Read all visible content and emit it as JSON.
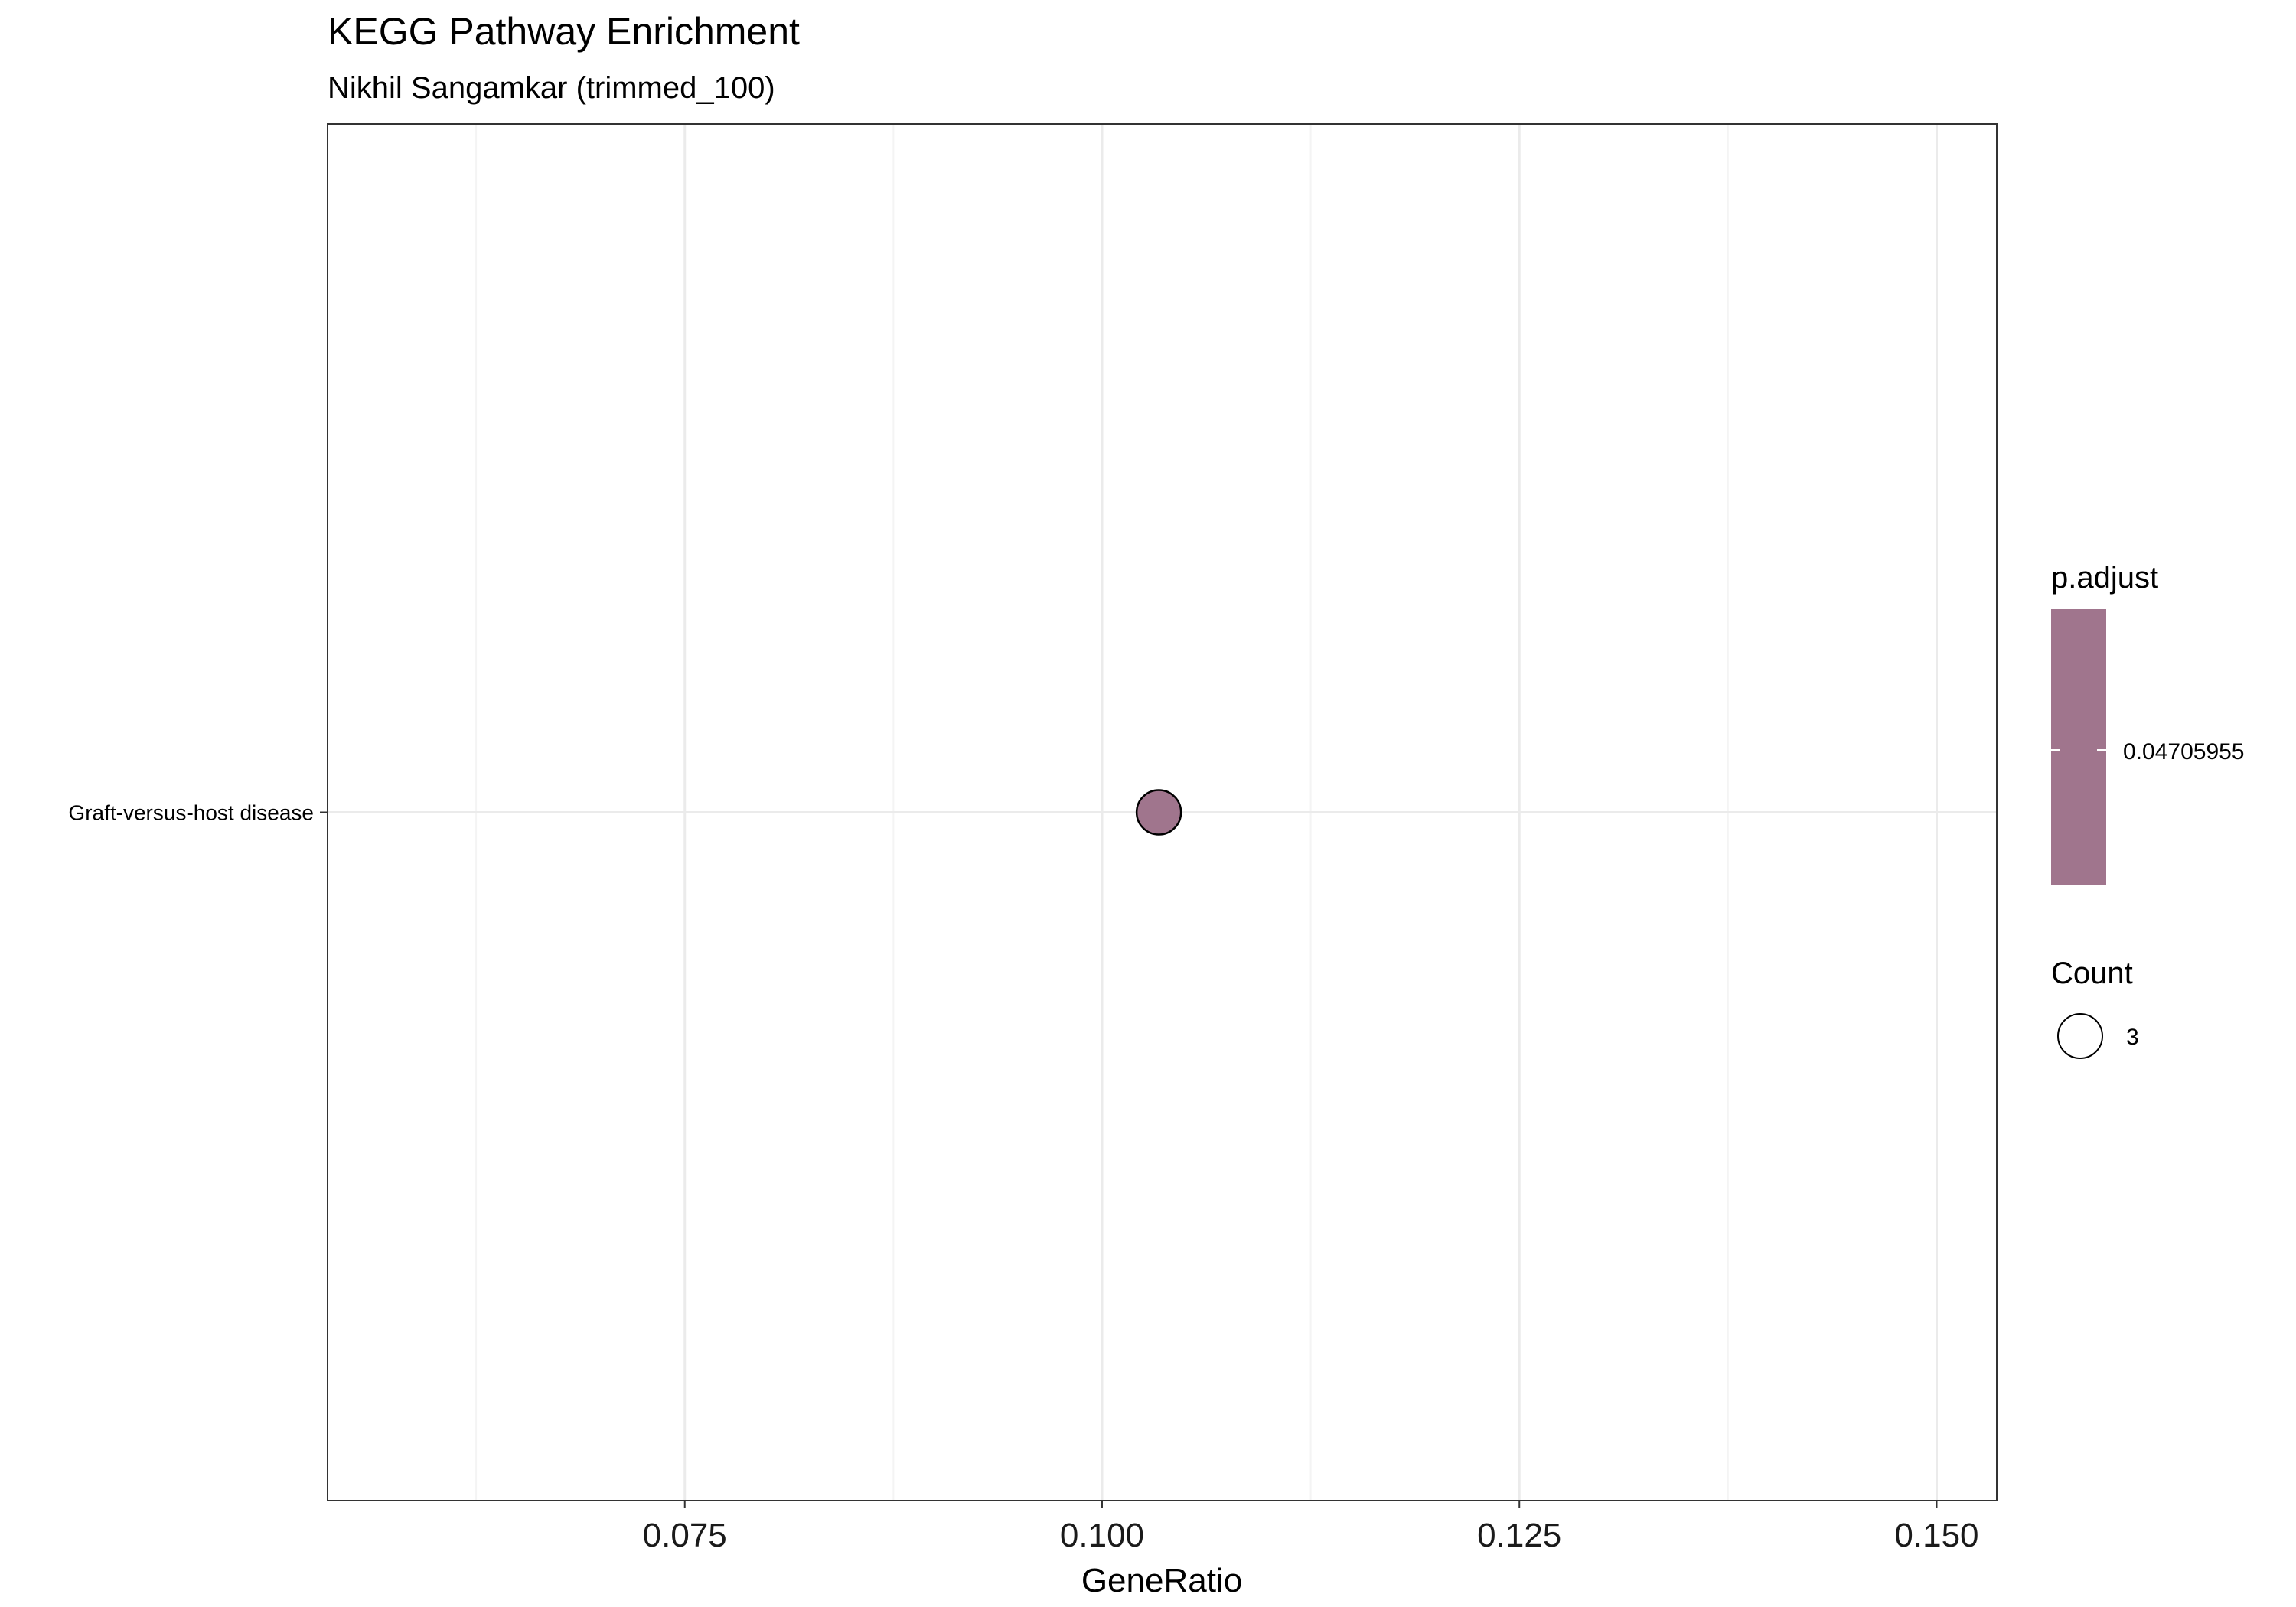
{
  "title": "KEGG Pathway Enrichment",
  "subtitle": "Nikhil Sangamkar (trimmed_100)",
  "colors": {
    "point_fill": "#a0758d",
    "point_stroke": "#000000",
    "grid_major": "#ebebeb",
    "grid_minor": "#f4f4f4",
    "panel_border": "#333333"
  },
  "legend": {
    "color_title": "p.adjust",
    "color_value_label": "0.04705955",
    "size_title": "Count",
    "size_value_label": "3",
    "placement": "right"
  },
  "chart_data": {
    "type": "scatter",
    "title": "KEGG Pathway Enrichment",
    "subtitle": "Nikhil Sangamkar (trimmed_100)",
    "xlabel": "GeneRatio",
    "ylabel": "",
    "xlim": [
      0.0536,
      0.1536
    ],
    "x_ticks": [
      0.075,
      0.1,
      0.125,
      0.15
    ],
    "x_tick_labels": [
      "0.075",
      "0.100",
      "0.125",
      "0.150"
    ],
    "categories": [
      "Graft-versus-host disease"
    ],
    "points": [
      {
        "category": "Graft-versus-host disease",
        "x": 0.1034,
        "p_adjust": 0.04705955,
        "count": 3
      }
    ],
    "grid": true
  }
}
